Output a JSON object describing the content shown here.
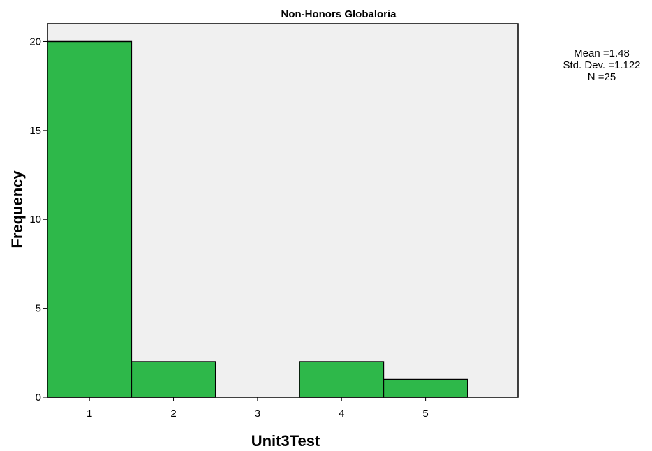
{
  "chart_data": {
    "type": "bar",
    "title": "Non-Honors Globaloria",
    "xlabel": "Unit3Test",
    "ylabel": "Frequency",
    "categories": [
      "1",
      "2",
      "3",
      "4",
      "5"
    ],
    "values": [
      20,
      2,
      0,
      2,
      1
    ],
    "x_ticks": [
      "1",
      "2",
      "3",
      "4",
      "5"
    ],
    "y_ticks": [
      "0",
      "5",
      "10",
      "15",
      "20"
    ],
    "ylim": [
      0,
      21
    ],
    "grid": false,
    "bar_color": "#2eb84a",
    "plot_background": "#f0f0f0",
    "stats_box": {
      "placement": "top-right",
      "lines": [
        "Mean =1.48",
        "Std. Dev. =1.122",
        "N =25"
      ]
    }
  }
}
